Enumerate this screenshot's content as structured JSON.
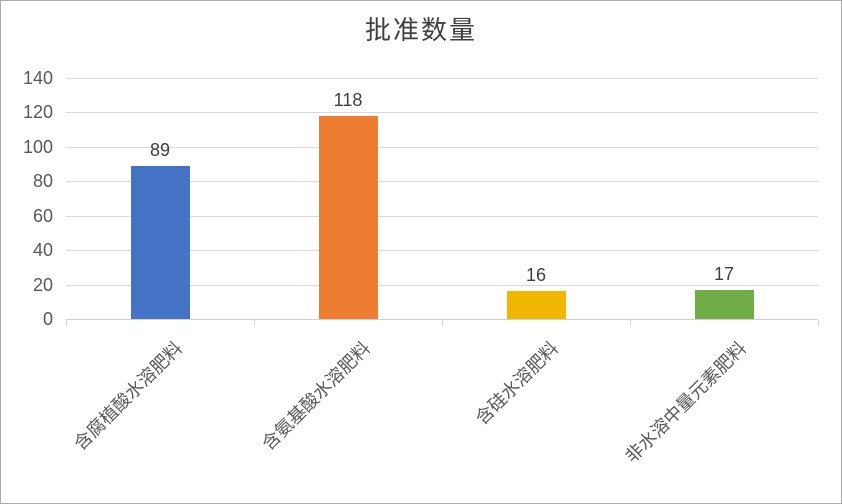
{
  "chart_data": {
    "type": "bar",
    "title": "批准数量",
    "categories": [
      "含腐植酸水溶肥料",
      "含氨基酸水溶肥料",
      "含硅水溶肥料",
      "非水溶中量元素肥料"
    ],
    "values": [
      89,
      118,
      16,
      17
    ],
    "data_labels": [
      "89",
      "118",
      "16",
      "17"
    ],
    "bar_colors": [
      "#4472C4",
      "#ED7D31",
      "#EFB700",
      "#70AD47"
    ],
    "xlabel": "",
    "ylabel": "",
    "ylim": [
      0,
      140
    ],
    "ytick_interval": 20,
    "ytick_labels": [
      "0",
      "20",
      "40",
      "60",
      "80",
      "100",
      "120",
      "140"
    ],
    "grid": "horizontal-only",
    "legend": "none",
    "category_label_rotation_deg": 45
  },
  "colors": {
    "gridline": "#D9D9D9",
    "axis_line": "#D0D0D0",
    "title_text": "#404040",
    "tick_text": "#595959",
    "data_label_text": "#404040",
    "figure_border": "#ABABAB",
    "background": "#FFFFFF"
  }
}
